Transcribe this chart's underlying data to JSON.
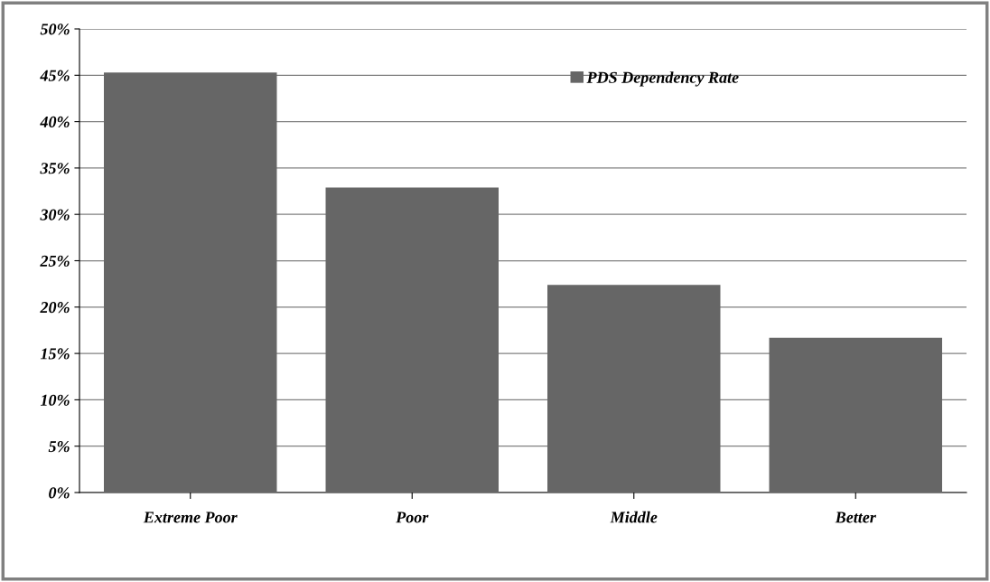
{
  "chart_data": {
    "type": "bar",
    "categories": [
      "Extreme Poor",
      "Poor",
      "Middle",
      "Better"
    ],
    "series": [
      {
        "name": "PDS Dependency Rate",
        "color": "#666666",
        "values": [
          45.3,
          32.9,
          22.4,
          16.7
        ]
      }
    ],
    "ylim": [
      0,
      50
    ],
    "yticks": [
      {
        "value": 0,
        "label": "0%"
      },
      {
        "value": 5,
        "label": "5%"
      },
      {
        "value": 10,
        "label": "10%"
      },
      {
        "value": 15,
        "label": "15%"
      },
      {
        "value": 20,
        "label": "20%"
      },
      {
        "value": 25,
        "label": "25%"
      },
      {
        "value": 30,
        "label": "30%"
      },
      {
        "value": 35,
        "label": "35%"
      },
      {
        "value": 40,
        "label": "40%"
      },
      {
        "value": 45,
        "label": "45%"
      },
      {
        "value": 50,
        "label": "50%"
      }
    ],
    "grid": "y",
    "legend": "top right"
  }
}
